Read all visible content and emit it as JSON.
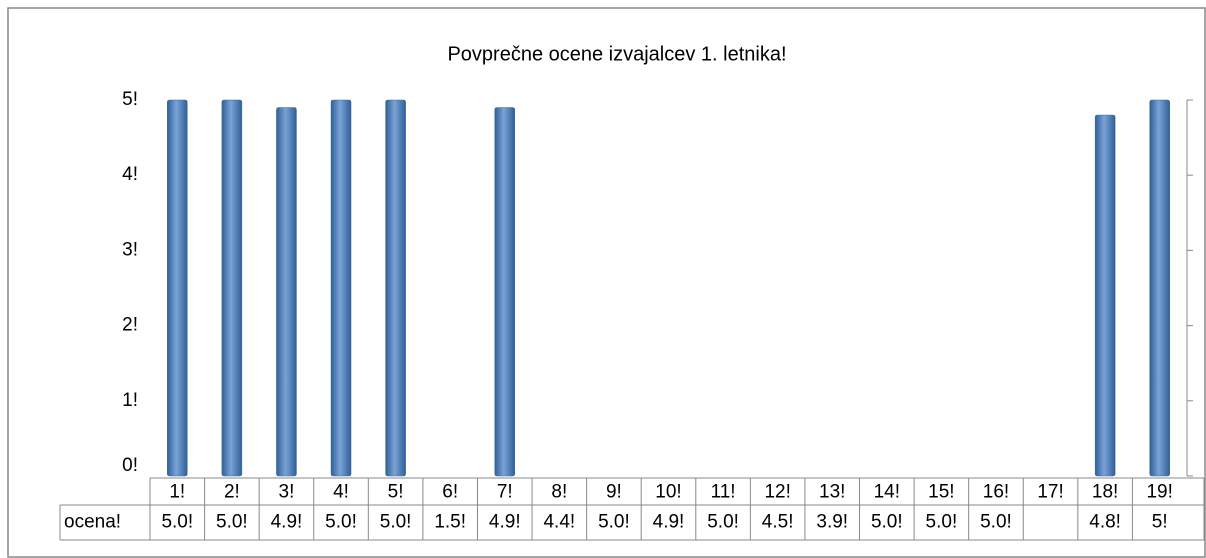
{
  "chart_data": {
    "type": "bar",
    "title": "Povprečne ocene izvajalcev 1. letnika!",
    "categories": [
      "1!",
      "2!",
      "3!",
      "4!",
      "5!",
      "6!",
      "7!",
      "8!",
      "9!",
      "10!",
      "11!",
      "12!",
      "13!",
      "14!",
      "15!",
      "16!",
      "17!",
      "18!",
      "19!"
    ],
    "values": [
      5.0,
      5.0,
      4.9,
      5.0,
      5.0,
      null,
      4.9,
      null,
      null,
      null,
      null,
      null,
      null,
      null,
      null,
      null,
      null,
      4.8,
      5.0
    ],
    "color": "#4f81bd",
    "ylim": [
      0,
      5
    ],
    "yticks": [
      {
        "value": 0,
        "label": "0!"
      },
      {
        "value": 1,
        "label": "1!"
      },
      {
        "value": 2,
        "label": "2!"
      },
      {
        "value": 3,
        "label": "3!"
      },
      {
        "value": 4,
        "label": "4!"
      },
      {
        "value": 5,
        "label": "5!"
      }
    ],
    "table": {
      "row_label": "ocena!",
      "cells": [
        "5.0!",
        "5.0!",
        "4.9!",
        "5.0!",
        "5.0!",
        "1.5!",
        "4.9!",
        "4.4!",
        "5.0!",
        "4.9!",
        "5.0!",
        "4.5!",
        "3.9!",
        "5.0!",
        "5.0!",
        "5.0!",
        null,
        "4.8!",
        "5!"
      ]
    }
  }
}
